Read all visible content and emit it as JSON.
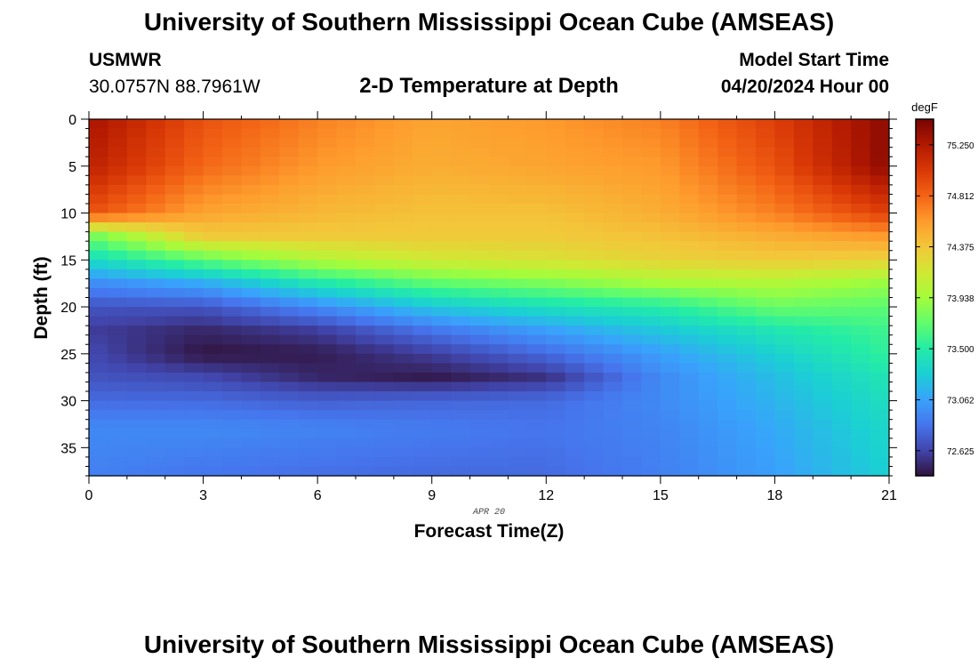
{
  "header": {
    "title": "University of Southern Mississippi Ocean Cube (AMSEAS)",
    "station_id": "USMWR",
    "station_coords": "30.0757N  88.7961W",
    "plot_title": "2-D Temperature at Depth",
    "model_start_label": "Model Start Time",
    "model_start_value": "04/20/2024 Hour 00"
  },
  "footer": {
    "title": "University of Southern Mississippi Ocean Cube (AMSEAS)"
  },
  "chart_data": {
    "type": "heatmap",
    "title": "2-D Temperature at Depth",
    "xlabel": "Forecast Time(Z)",
    "ylabel": "Depth (ft)",
    "date_label": "APR 20",
    "xlim": [
      0,
      21
    ],
    "ylim": [
      38,
      0
    ],
    "x_ticks": [
      "0",
      "3",
      "6",
      "9",
      "12",
      "15",
      "18",
      "21"
    ],
    "y_ticks": [
      "0",
      "5",
      "10",
      "15",
      "20",
      "25",
      "30",
      "35"
    ],
    "colorbar": {
      "unit": "degF",
      "range": [
        72.41,
        75.47
      ],
      "ticks": [
        "75.250",
        "74.812",
        "74.375",
        "73.938",
        "73.500",
        "73.062",
        "72.625"
      ],
      "colors": [
        "#30123b",
        "#4145ab",
        "#4675ed",
        "#39a2fc",
        "#1bcfd4",
        "#24eca6",
        "#61fc6c",
        "#a4fc3b",
        "#d1e834",
        "#f3c63a",
        "#fe9b2d",
        "#f36315",
        "#d93806",
        "#b11901",
        "#7a0402"
      ]
    },
    "grid": false,
    "time_hours": [
      0,
      3,
      6,
      9,
      12,
      15,
      18,
      21
    ],
    "sample_depths_ft": [
      0,
      5,
      10,
      12.5,
      15,
      17.5,
      20,
      22.5,
      25,
      27.5,
      30,
      33,
      38
    ],
    "temperature_degF": [
      [
        75.3,
        74.9,
        74.7,
        74.55,
        74.6,
        74.7,
        75.0,
        75.4
      ],
      [
        75.2,
        74.8,
        74.6,
        74.5,
        74.55,
        74.6,
        74.9,
        75.4
      ],
      [
        74.9,
        74.55,
        74.45,
        74.4,
        74.4,
        74.5,
        74.7,
        75.0
      ],
      [
        73.75,
        74.35,
        74.35,
        74.35,
        74.35,
        74.4,
        74.5,
        74.6
      ],
      [
        73.35,
        73.7,
        74.0,
        74.15,
        74.2,
        74.3,
        74.35,
        74.3
      ],
      [
        72.95,
        73.1,
        73.45,
        73.7,
        73.8,
        73.95,
        74.0,
        73.9
      ],
      [
        72.7,
        72.7,
        72.95,
        73.25,
        73.4,
        73.5,
        73.75,
        73.7
      ],
      [
        72.6,
        72.5,
        72.6,
        72.85,
        73.05,
        73.25,
        73.45,
        73.6
      ],
      [
        72.65,
        72.42,
        72.45,
        72.6,
        72.8,
        73.05,
        73.3,
        73.55
      ],
      [
        72.7,
        72.65,
        72.5,
        72.45,
        72.55,
        72.95,
        73.2,
        73.45
      ],
      [
        72.8,
        72.8,
        72.75,
        72.78,
        72.8,
        72.95,
        73.15,
        73.4
      ],
      [
        72.95,
        72.95,
        72.92,
        72.88,
        72.85,
        72.92,
        73.1,
        73.35
      ],
      [
        72.9,
        72.85,
        72.82,
        72.8,
        72.8,
        72.9,
        73.05,
        73.3
      ]
    ]
  }
}
